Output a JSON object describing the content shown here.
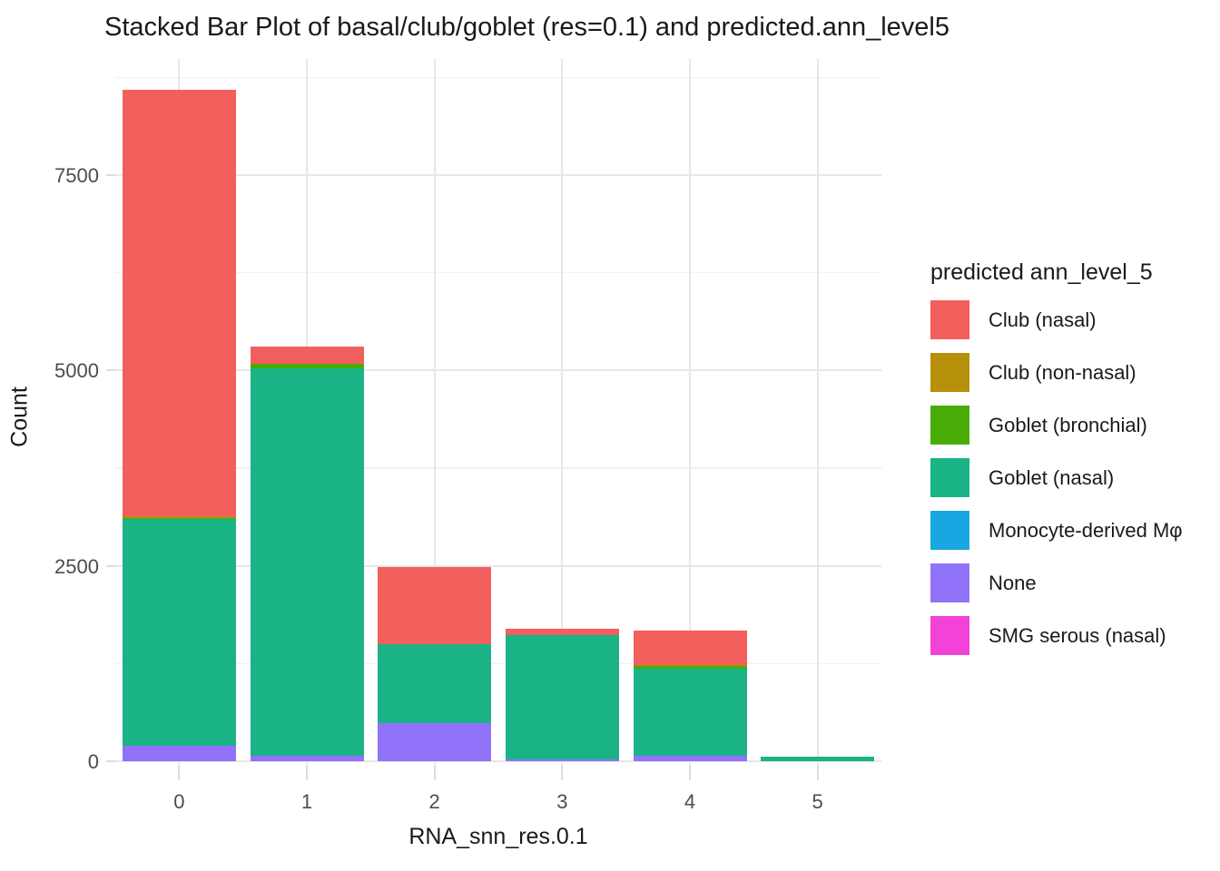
{
  "title": "Stacked Bar Plot of basal/club/goblet (res=0.1) and predicted.ann_level5",
  "chart_data": {
    "type": "bar",
    "stacked": true,
    "title": "Stacked Bar Plot of basal/club/goblet (res=0.1) and predicted.ann_level5",
    "xlabel": "RNA_snn_res.0.1",
    "ylabel": "Count",
    "categories": [
      "0",
      "1",
      "2",
      "3",
      "4",
      "5"
    ],
    "y_ticks": [
      0,
      2500,
      5000,
      7500
    ],
    "y_minor_gridlines": [
      1250,
      3750,
      6250,
      8750
    ],
    "ylim": [
      0,
      8990
    ],
    "grid": true,
    "legend_title": "predicted ann_level_5",
    "legend_position": "right",
    "stack_order_note": "series listed bottom-to-top of stack",
    "series": [
      {
        "name": "SMG serous (nasal)",
        "color": "#F342D7",
        "values": [
          0,
          0,
          0,
          0,
          0,
          0
        ]
      },
      {
        "name": "None",
        "color": "#9173FA",
        "values": [
          200,
          75,
          490,
          25,
          65,
          0
        ]
      },
      {
        "name": "Monocyte-derived Mφ",
        "color": "#19A7E1",
        "values": [
          0,
          0,
          0,
          0,
          0,
          0
        ]
      },
      {
        "name": "Goblet (nasal)",
        "color": "#1AB386",
        "values": [
          2900,
          4950,
          1010,
          1590,
          1120,
          60
        ]
      },
      {
        "name": "Goblet (bronchial)",
        "color": "#49AC06",
        "values": [
          15,
          60,
          0,
          0,
          35,
          0
        ]
      },
      {
        "name": "Club (non-nasal)",
        "color": "#B6900B",
        "values": [
          25,
          0,
          0,
          0,
          15,
          0
        ]
      },
      {
        "name": "Club (nasal)",
        "color": "#F25F5C",
        "values": [
          5450,
          220,
          990,
          80,
          440,
          0
        ]
      }
    ],
    "bar_totals": [
      8590,
      5305,
      2490,
      1695,
      1675,
      60
    ],
    "legend_order": [
      "Club (nasal)",
      "Club (non-nasal)",
      "Goblet (bronchial)",
      "Goblet (nasal)",
      "Monocyte-derived Mφ",
      "None",
      "SMG serous (nasal)"
    ]
  }
}
